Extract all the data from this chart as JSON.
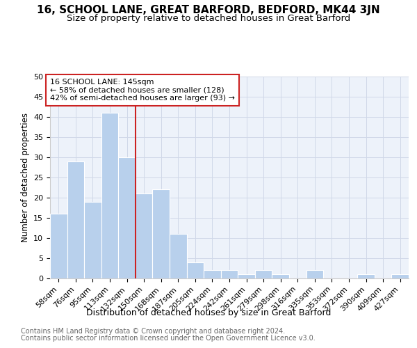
{
  "title1": "16, SCHOOL LANE, GREAT BARFORD, BEDFORD, MK44 3JN",
  "title2": "Size of property relative to detached houses in Great Barford",
  "xlabel": "Distribution of detached houses by size in Great Barford",
  "ylabel": "Number of detached properties",
  "categories": [
    "58sqm",
    "76sqm",
    "95sqm",
    "113sqm",
    "132sqm",
    "150sqm",
    "168sqm",
    "187sqm",
    "205sqm",
    "224sqm",
    "242sqm",
    "261sqm",
    "279sqm",
    "298sqm",
    "316sqm",
    "335sqm",
    "353sqm",
    "372sqm",
    "390sqm",
    "409sqm",
    "427sqm"
  ],
  "values": [
    16,
    29,
    19,
    41,
    30,
    21,
    22,
    11,
    4,
    2,
    2,
    1,
    2,
    1,
    0,
    2,
    0,
    0,
    1,
    0,
    1
  ],
  "bar_color": "#b8d0ec",
  "bar_edge_color": "#b8d0ec",
  "annotation_box_text": "16 SCHOOL LANE: 145sqm\n← 58% of detached houses are smaller (128)\n42% of semi-detached houses are larger (93) →",
  "annotation_box_edge_color": "#cc2222",
  "vline_color": "#cc2222",
  "vline_x": 5,
  "ylim": [
    0,
    50
  ],
  "yticks": [
    0,
    5,
    10,
    15,
    20,
    25,
    30,
    35,
    40,
    45,
    50
  ],
  "footer1": "Contains HM Land Registry data © Crown copyright and database right 2024.",
  "footer2": "Contains public sector information licensed under the Open Government Licence v3.0.",
  "grid_color": "#d0d8e8",
  "bg_color": "#edf2fa",
  "title1_fontsize": 11,
  "title2_fontsize": 9.5,
  "xlabel_fontsize": 9,
  "ylabel_fontsize": 8.5,
  "tick_fontsize": 8,
  "footer_fontsize": 7,
  "ann_fontsize": 8
}
